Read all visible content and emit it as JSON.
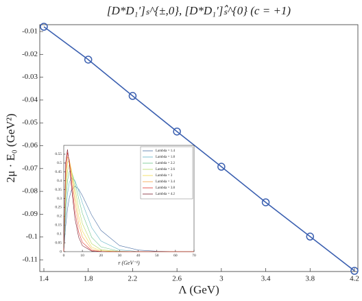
{
  "chart_data": [
    {
      "type": "line",
      "title": "[D*D₁′]ₛ^{±,0}, [D*D₁′]ₛ̂^{0} (c = +1)",
      "x_label": "Λ (GeV)",
      "y_label": "2μ · E₀ (GeV²)",
      "x": [
        1.4,
        1.8,
        2.2,
        2.6,
        3,
        3.4,
        3.8,
        4.2
      ],
      "series": [
        {
          "color": "#3a5fb0",
          "values": [
            -0.0079,
            -0.0223,
            -0.0382,
            -0.0538,
            -0.0692,
            -0.0848,
            -0.0998,
            -0.1148
          ]
        }
      ],
      "xlim": [
        1.4,
        4.2
      ],
      "xticks": [
        1.4,
        1.8,
        2.2,
        2.6,
        3,
        3.4,
        3.8,
        4.2
      ],
      "ylim": [
        -0.1151,
        -0.007
      ],
      "yticks": [
        -0.01,
        -0.02,
        -0.03,
        -0.04,
        -0.05,
        -0.06,
        -0.07,
        -0.08,
        -0.09,
        -0.1,
        -0.11
      ],
      "marker": "circle",
      "grid": false
    },
    {
      "type": "line",
      "x_label": "r (GeV⁻¹)",
      "x": [
        0,
        1,
        2,
        3,
        4,
        6,
        8,
        10,
        15,
        20,
        30,
        40,
        50,
        60,
        70
      ],
      "series": [
        {
          "name": "Lambda = 1.4",
          "color": "#4a6fa5",
          "values": [
            0,
            0.142,
            0.24,
            0.305,
            0.344,
            0.37,
            0.353,
            0.316,
            0.206,
            0.12,
            0.034,
            0.009,
            0.002,
            0,
            0
          ]
        },
        {
          "name": "Lambda = 1.8",
          "color": "#5fb3c4",
          "values": [
            0,
            0.203,
            0.325,
            0.391,
            0.417,
            0.401,
            0.343,
            0.275,
            0.136,
            0.06,
            0.01,
            0.001,
            0,
            0,
            0
          ]
        },
        {
          "name": "Lambda = 2.2",
          "color": "#6cc48a",
          "values": [
            0,
            0.263,
            0.399,
            0.453,
            0.457,
            0.393,
            0.301,
            0.216,
            0.081,
            0.027,
            0.002,
            0,
            0,
            0,
            0
          ]
        },
        {
          "name": "Lambda = 2.6",
          "color": "#b8d860",
          "values": [
            0,
            0.318,
            0.456,
            0.49,
            0.468,
            0.361,
            0.247,
            0.158,
            0.045,
            0.011,
            0.001,
            0,
            0,
            0,
            0
          ]
        },
        {
          "name": "Lambda = 3",
          "color": "#f2d84a",
          "values": [
            0,
            0.37,
            0.504,
            0.514,
            0.467,
            0.324,
            0.201,
            0.116,
            0.025,
            0.005,
            0,
            0,
            0,
            0,
            0
          ]
        },
        {
          "name": "Lambda = 3.4",
          "color": "#f5a040",
          "values": [
            0,
            0.413,
            0.535,
            0.519,
            0.449,
            0.282,
            0.158,
            0.083,
            0.014,
            0.001,
            0,
            0,
            0,
            0,
            0
          ]
        },
        {
          "name": "Lambda = 3.8",
          "color": "#e0302a",
          "values": [
            0,
            0.461,
            0.56,
            0.51,
            0.412,
            0.227,
            0.111,
            0.052,
            0.006,
            0.001,
            0,
            0,
            0,
            0,
            0
          ]
        },
        {
          "name": "Lambda = 4.2",
          "color": "#7a1a2a",
          "values": [
            0,
            0.503,
            0.577,
            0.496,
            0.38,
            0.187,
            0.082,
            0.034,
            0.003,
            0,
            0,
            0,
            0,
            0,
            0
          ]
        }
      ],
      "xlim": [
        0,
        70
      ],
      "xticks": [
        0,
        10,
        20,
        30,
        40,
        50,
        60,
        70
      ],
      "ylim": [
        0,
        0.6
      ],
      "yticks": [
        0,
        0.05,
        0.1,
        0.15,
        0.2,
        0.25,
        0.3,
        0.35,
        0.4,
        0.45,
        0.5,
        0.55
      ],
      "legend": "top-right",
      "grid": false
    }
  ]
}
